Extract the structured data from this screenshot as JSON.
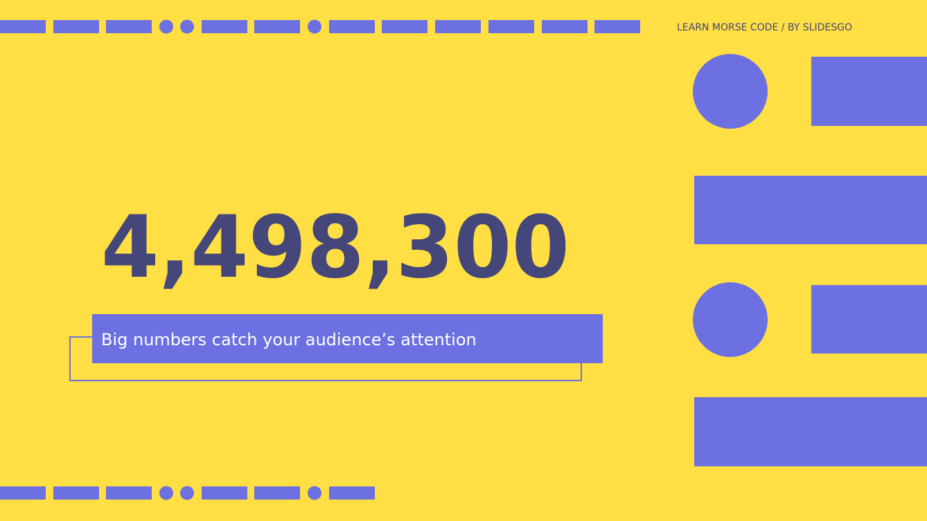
{
  "header": {
    "title": "LEARN MORSE CODE / BY SLIDESGO"
  },
  "big_number": "4,498,300",
  "caption": "Big numbers catch your audience’s attention"
}
